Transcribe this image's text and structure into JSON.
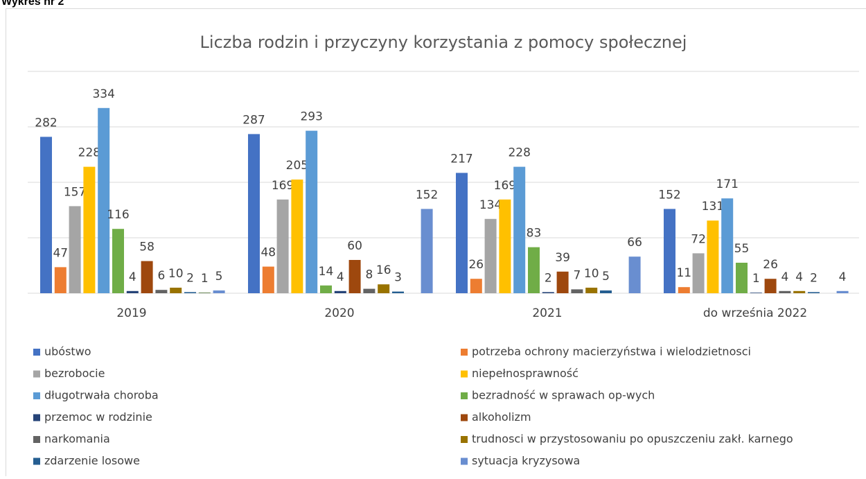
{
  "chart_data": {
    "type": "bar",
    "header": "Wykres nr 2",
    "title": "Liczba rodzin i przyczyny korzystania z pomocy społecznej",
    "categories": [
      "2019",
      "2020",
      "2021",
      "do września 2022"
    ],
    "ylim": [
      0,
      400
    ],
    "yticks": [
      0,
      100,
      200,
      300,
      400
    ],
    "grid": true,
    "legend": "bottom",
    "series": [
      {
        "name": "ubóstwo",
        "color": "#4472c4",
        "values": [
          282,
          287,
          217,
          152
        ]
      },
      {
        "name": "potrzeba ochrony macierzyństwa i wielodzietnosci",
        "color": "#ed7d31",
        "values": [
          47,
          48,
          26,
          11
        ]
      },
      {
        "name": "bezrobocie",
        "color": "#a5a5a5",
        "values": [
          157,
          169,
          134,
          72
        ]
      },
      {
        "name": "niepełnosprawność",
        "color": "#ffc000",
        "values": [
          228,
          205,
          169,
          131
        ]
      },
      {
        "name": "długotrwała choroba",
        "color": "#5b9bd5",
        "values": [
          334,
          293,
          228,
          171
        ]
      },
      {
        "name": "bezradność w sprawach op-wych",
        "color": "#70ad47",
        "values": [
          116,
          14,
          83,
          55
        ]
      },
      {
        "name": "przemoc w rodzinie",
        "color": "#264478",
        "values": [
          4,
          4,
          2,
          1
        ]
      },
      {
        "name": "alkoholizm",
        "color": "#9e480e",
        "values": [
          58,
          60,
          39,
          26
        ]
      },
      {
        "name": "narkomania",
        "color": "#636363",
        "values": [
          6,
          8,
          7,
          4
        ]
      },
      {
        "name": "trudnosci w przystosowaniu po opuszczeniu zakł. karnego",
        "color": "#997300",
        "values": [
          10,
          16,
          10,
          4
        ]
      },
      {
        "name": "zdarzenie losowe",
        "color": "#255e91",
        "values": [
          2,
          3,
          5,
          2
        ]
      },
      {
        "color": "#43682b",
        "values": [
          1,
          null,
          null,
          null
        ]
      },
      {
        "name": "sytuacja kryzysowa",
        "color": "#698ed0",
        "values": [
          5,
          152,
          66,
          4
        ]
      }
    ]
  }
}
